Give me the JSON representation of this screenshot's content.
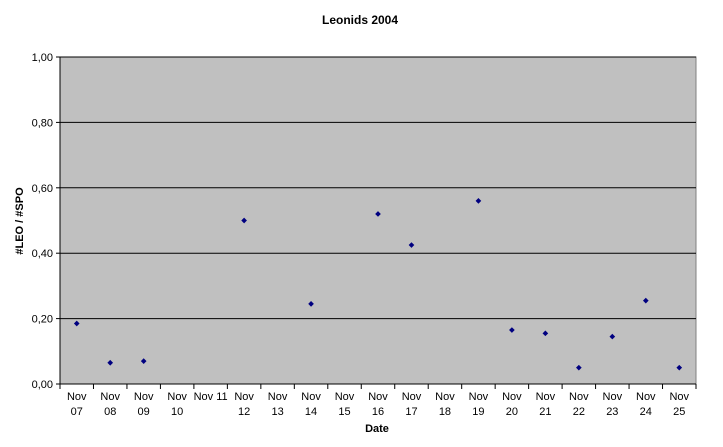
{
  "chart_data": {
    "type": "scatter",
    "title": "Leonids 2004",
    "xlabel": "Date",
    "ylabel": "#LEO / #SPO",
    "categories": [
      [
        "Nov",
        "07"
      ],
      [
        "Nov",
        "08"
      ],
      [
        "Nov",
        "09"
      ],
      [
        "Nov",
        "10"
      ],
      [
        "Nov 11"
      ],
      [
        "Nov",
        "12"
      ],
      [
        "Nov",
        "13"
      ],
      [
        "Nov",
        "14"
      ],
      [
        "Nov",
        "15"
      ],
      [
        "Nov",
        "16"
      ],
      [
        "Nov",
        "17"
      ],
      [
        "Nov",
        "18"
      ],
      [
        "Nov",
        "19"
      ],
      [
        "Nov",
        "20"
      ],
      [
        "Nov",
        "21"
      ],
      [
        "Nov",
        "22"
      ],
      [
        "Nov",
        "23"
      ],
      [
        "Nov",
        "24"
      ],
      [
        "Nov",
        "25"
      ]
    ],
    "points": [
      {
        "x": 0,
        "y": 0.185
      },
      {
        "x": 1,
        "y": 0.065
      },
      {
        "x": 2,
        "y": 0.07
      },
      {
        "x": 5,
        "y": 0.5
      },
      {
        "x": 7,
        "y": 0.245
      },
      {
        "x": 9,
        "y": 0.52
      },
      {
        "x": 10,
        "y": 0.425
      },
      {
        "x": 12,
        "y": 0.56
      },
      {
        "x": 13,
        "y": 0.165
      },
      {
        "x": 14,
        "y": 0.155
      },
      {
        "x": 15,
        "y": 0.05
      },
      {
        "x": 16,
        "y": 0.145
      },
      {
        "x": 17,
        "y": 0.255
      },
      {
        "x": 18,
        "y": 0.05
      }
    ],
    "y_ticks": [
      "0,00",
      "0,20",
      "0,40",
      "0,60",
      "0,80",
      "1,00"
    ],
    "ylim": [
      0,
      1
    ],
    "grid": true,
    "colors": {
      "plot_background": "#c0c0c0",
      "gridline": "#000000",
      "marker": "#000080"
    }
  }
}
